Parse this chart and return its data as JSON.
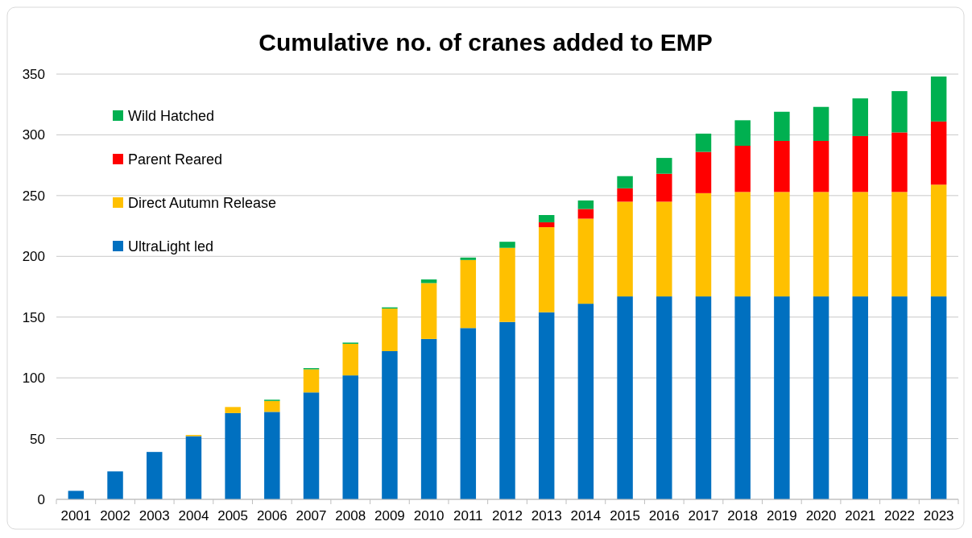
{
  "chart_data": {
    "type": "bar",
    "title": "Cumulative no. of cranes added to EMP",
    "categories": [
      "2001",
      "2002",
      "2003",
      "2004",
      "2005",
      "2006",
      "2007",
      "2008",
      "2009",
      "2010",
      "2011",
      "2012",
      "2013",
      "2014",
      "2015",
      "2016",
      "2017",
      "2018",
      "2019",
      "2020",
      "2021",
      "2022",
      "2023"
    ],
    "stacked": true,
    "series": [
      {
        "name": "UltraLight led",
        "color": "#0070c0",
        "values": [
          7,
          23,
          39,
          52,
          71,
          72,
          88,
          102,
          122,
          132,
          141,
          146,
          154,
          161,
          167,
          167,
          167,
          167,
          167,
          167,
          167,
          167,
          167
        ]
      },
      {
        "name": "Direct Autumn Release",
        "color": "#ffc000",
        "values": [
          0,
          0,
          0,
          1,
          5,
          9,
          19,
          26,
          35,
          46,
          56,
          61,
          70,
          70,
          78,
          78,
          85,
          86,
          86,
          86,
          86,
          86,
          92
        ]
      },
      {
        "name": "Parent Reared",
        "color": "#ff0000",
        "values": [
          0,
          0,
          0,
          0,
          0,
          0,
          0,
          0,
          0,
          0,
          0,
          0,
          4,
          8,
          11,
          23,
          34,
          38,
          42,
          42,
          46,
          49,
          52
        ]
      },
      {
        "name": "Wild Hatched",
        "color": "#00b050",
        "values": [
          0,
          0,
          0,
          0,
          0,
          1,
          1,
          1,
          1,
          3,
          2,
          5,
          6,
          7,
          10,
          13,
          15,
          21,
          24,
          28,
          31,
          34,
          37
        ]
      }
    ],
    "ylim": [
      0,
      350
    ],
    "yticks": [
      0,
      50,
      100,
      150,
      200,
      250,
      300,
      350
    ],
    "grid": "y",
    "legend": "top left"
  }
}
